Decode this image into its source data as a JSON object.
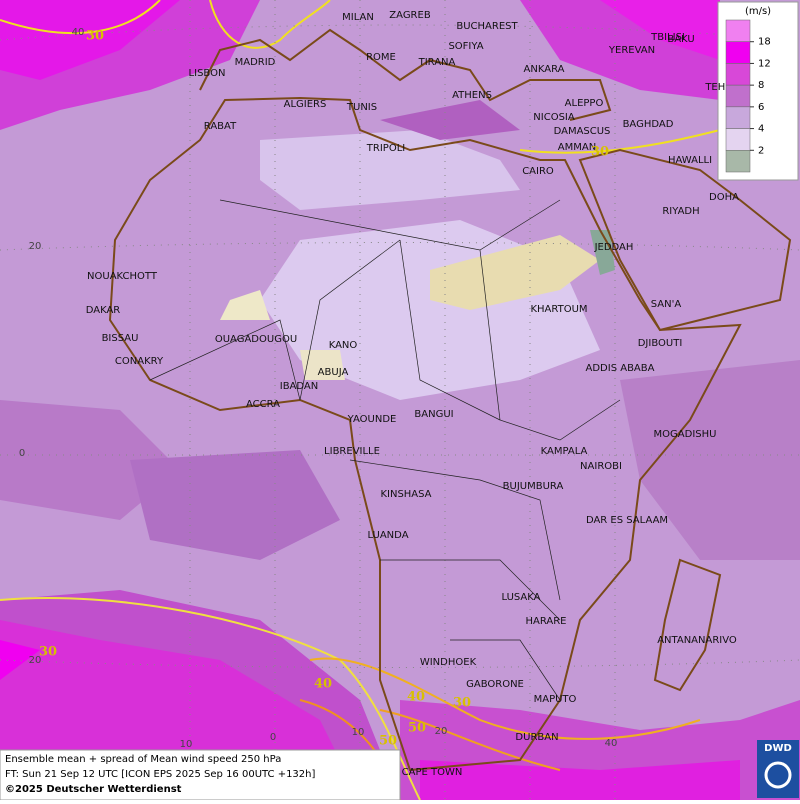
{
  "map": {
    "caption": [
      "Ensemble mean + spread of Mean wind speed 250 hPa",
      "FT: Sun 21 Sep 12 UTC [ICON EPS 2025 Sep 16 00UTC +132h]",
      "©2025 Deutscher Wetterdienst"
    ],
    "logo": "DWD",
    "legend": {
      "unit": "(m/s)",
      "ticks": [
        18,
        12,
        8,
        6,
        4,
        2
      ],
      "colors": [
        "#f080f0",
        "#f000f0",
        "#d848d8",
        "#c070cc",
        "#c8a8dc",
        "#e4d4f0",
        "#a8b8a8"
      ]
    },
    "grid_labels": [
      "40",
      "20",
      "0",
      "20",
      "10",
      "0",
      "10",
      "20",
      "40"
    ],
    "contour_labels": [
      "30",
      "30",
      "30",
      "40",
      "40",
      "30",
      "50",
      "50"
    ],
    "cities": [
      "MILAN",
      "ZAGREB",
      "BUCHAREST",
      "SOFIYA",
      "ROME",
      "TIRANA",
      "MADRID",
      "LISBON",
      "ANKARA",
      "TBILISI",
      "BAKU",
      "YEREVAN",
      "TEHRA",
      "ALGIERS",
      "TUNIS",
      "ATHENS",
      "ALEPPO",
      "NICOSIA",
      "BAGHDAD",
      "RABAT",
      "DAMASCUS",
      "AMMAN",
      "TRIPOLI",
      "HAWALLI",
      "CAIRO",
      "DOHA",
      "RIYADH",
      "JEDDAH",
      "NOUAKCHOTT",
      "DAKAR",
      "SAN'A",
      "KHARTOUM",
      "BISSAU",
      "OUAGADOUGOU",
      "DJIBOUTI",
      "KANO",
      "CONAKRY",
      "ABUJA",
      "ADDIS ABABA",
      "IBADAN",
      "ACCRA",
      "YAOUNDE",
      "BANGUI",
      "MOGADISHU",
      "LIBREVILLE",
      "KAMPALA",
      "NAIROBI",
      "BUJUMBURA",
      "KINSHASA",
      "DAR ES SALAAM",
      "LUANDA",
      "LUSAKA",
      "HARARE",
      "ANTANANARIVO",
      "WINDHOEK",
      "GABORONE",
      "MAPUTO",
      "DURBAN",
      "CAPE TOWN"
    ]
  }
}
